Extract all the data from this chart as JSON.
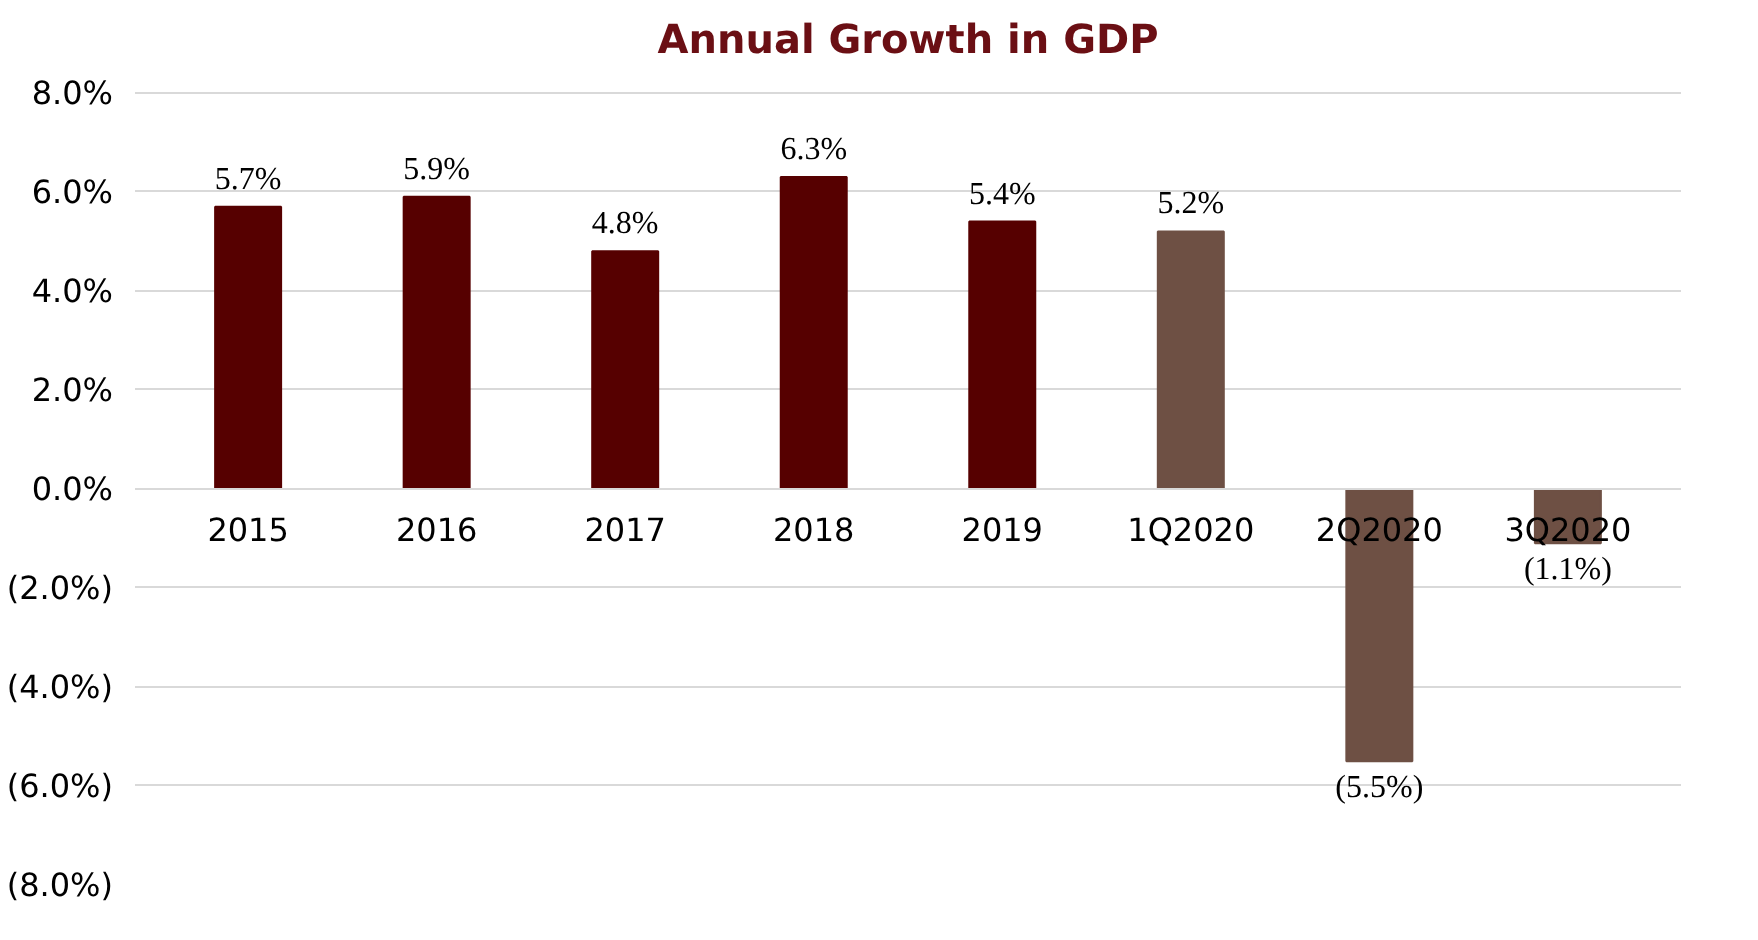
{
  "chart_data": {
    "type": "bar",
    "title": "Annual Growth in GDP",
    "categories": [
      "2015",
      "2016",
      "2017",
      "2018",
      "2019",
      "1Q2020",
      "2Q2020",
      "3Q2020"
    ],
    "values": [
      5.7,
      5.9,
      4.8,
      6.3,
      5.4,
      5.2,
      -5.5,
      -1.1
    ],
    "colors": [
      "#560000",
      "#560000",
      "#560000",
      "#560000",
      "#560000",
      "#6e5044",
      "#6e5044",
      "#6e5044"
    ],
    "value_labels": [
      "5.7%",
      "5.9%",
      "4.8%",
      "6.3%",
      "5.4%",
      "5.2%",
      "(5.5%)",
      "(1.1%)"
    ],
    "ylim": [
      -8,
      8
    ],
    "yticks": [
      {
        "value": -8,
        "label": "(8.0%)"
      },
      {
        "value": -6,
        "label": "(6.0%)"
      },
      {
        "value": -4,
        "label": "(4.0%)"
      },
      {
        "value": -2,
        "label": "(2.0%)"
      },
      {
        "value": 0,
        "label": "0.0%"
      },
      {
        "value": 2,
        "label": "2.0%"
      },
      {
        "value": 4,
        "label": "4.0%"
      },
      {
        "value": 6,
        "label": "6.0%"
      },
      {
        "value": 8,
        "label": "8.0%"
      }
    ],
    "grid": "y"
  }
}
